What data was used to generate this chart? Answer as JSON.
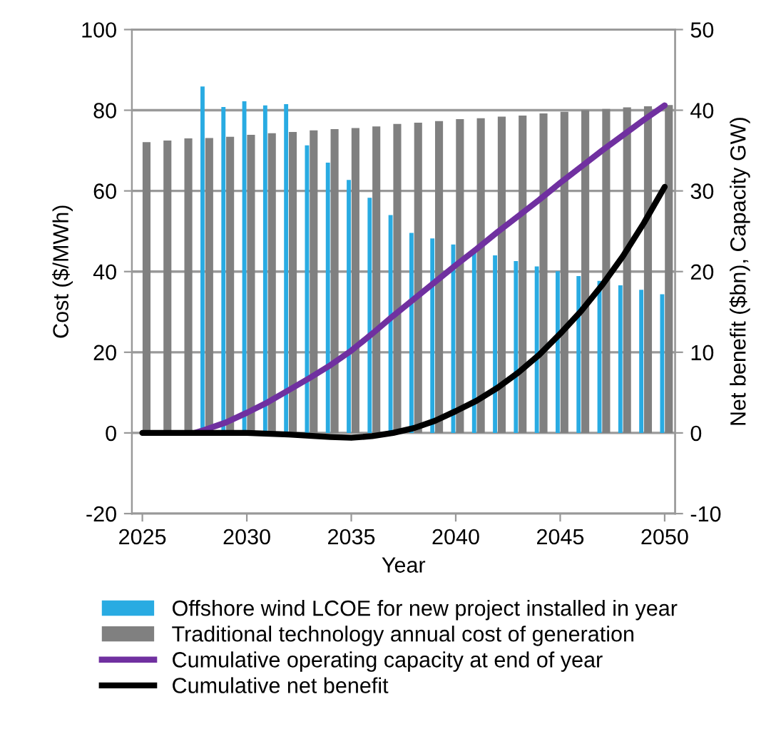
{
  "chart_data": {
    "type": "bar",
    "xlabel": "Year",
    "ylabel": "Cost ($/MWh)",
    "y2label": "Net benefit ($bn), Capacity GW)",
    "xlim": [
      2024.5,
      2050.5
    ],
    "xticks": [
      2025,
      2030,
      2035,
      2040,
      2045,
      2050
    ],
    "ylim": [
      -20,
      100
    ],
    "yticks": [
      -20,
      0,
      20,
      40,
      60,
      80,
      100
    ],
    "y2lim": [
      -10,
      50
    ],
    "y2ticks": [
      -10,
      0,
      10,
      20,
      30,
      40,
      50
    ],
    "grid": "y",
    "legend": "bottom",
    "series": [
      {
        "name": "Offshore wind LCOE for new project installed in year",
        "color": "#29abe2",
        "x": [
          2028,
          2029,
          2030,
          2031,
          2032,
          2033,
          2034,
          2035,
          2036,
          2037,
          2038,
          2039,
          2040,
          2041,
          2042,
          2043,
          2044,
          2045,
          2046,
          2047,
          2048,
          2049,
          2050
        ],
        "values": [
          85.9,
          80.8,
          82.2,
          81.2,
          81.5,
          71.3,
          67.0,
          62.7,
          58.3,
          54.0,
          49.6,
          48.2,
          46.7,
          45.3,
          44.0,
          42.6,
          41.3,
          40.1,
          38.9,
          37.7,
          36.6,
          35.5,
          34.4
        ]
      },
      {
        "name": "Traditional technology annual cost of generation",
        "color": "#808080",
        "x": [
          2025,
          2026,
          2027,
          2028,
          2029,
          2030,
          2031,
          2032,
          2033,
          2034,
          2035,
          2036,
          2037,
          2038,
          2039,
          2040,
          2041,
          2042,
          2043,
          2044,
          2045,
          2046,
          2047,
          2048,
          2049,
          2050
        ],
        "values": [
          72.1,
          72.5,
          73.0,
          73.1,
          73.4,
          73.9,
          74.3,
          74.6,
          75.0,
          75.3,
          75.6,
          76.0,
          76.6,
          76.9,
          77.3,
          77.8,
          78.0,
          78.4,
          78.7,
          79.2,
          79.6,
          80.0,
          80.3,
          80.7,
          81.0,
          81.3
        ]
      },
      {
        "name": "Cumulative operating capacity at end of year",
        "type": "line",
        "axis": "y2",
        "color": "#7030a0",
        "x": [
          2027.5,
          2028,
          2029,
          2030,
          2031,
          2032,
          2033,
          2034,
          2035,
          2036,
          2037,
          2038,
          2039,
          2040,
          2041,
          2042,
          2043,
          2044,
          2045,
          2046,
          2047,
          2048,
          2049,
          2050
        ],
        "values": [
          0,
          0.4,
          1.3,
          2.5,
          3.8,
          5.3,
          6.8,
          8.4,
          10.2,
          12.3,
          14.5,
          16.6,
          18.7,
          20.8,
          22.8,
          24.9,
          26.9,
          28.9,
          31.0,
          33.0,
          35.0,
          36.9,
          38.8,
          40.6
        ]
      },
      {
        "name": "Cumulative net benefit",
        "type": "line",
        "axis": "y2",
        "color": "#000000",
        "x": [
          2025,
          2030,
          2032,
          2034,
          2035,
          2036,
          2037,
          2038,
          2039,
          2040,
          2041,
          2042,
          2043,
          2044,
          2045,
          2046,
          2047,
          2048,
          2049,
          2050
        ],
        "values": [
          0,
          0,
          -0.2,
          -0.5,
          -0.6,
          -0.4,
          0,
          0.6,
          1.5,
          2.7,
          4.0,
          5.6,
          7.5,
          9.7,
          12.3,
          15.1,
          18.3,
          21.9,
          26.0,
          30.5
        ]
      }
    ]
  }
}
